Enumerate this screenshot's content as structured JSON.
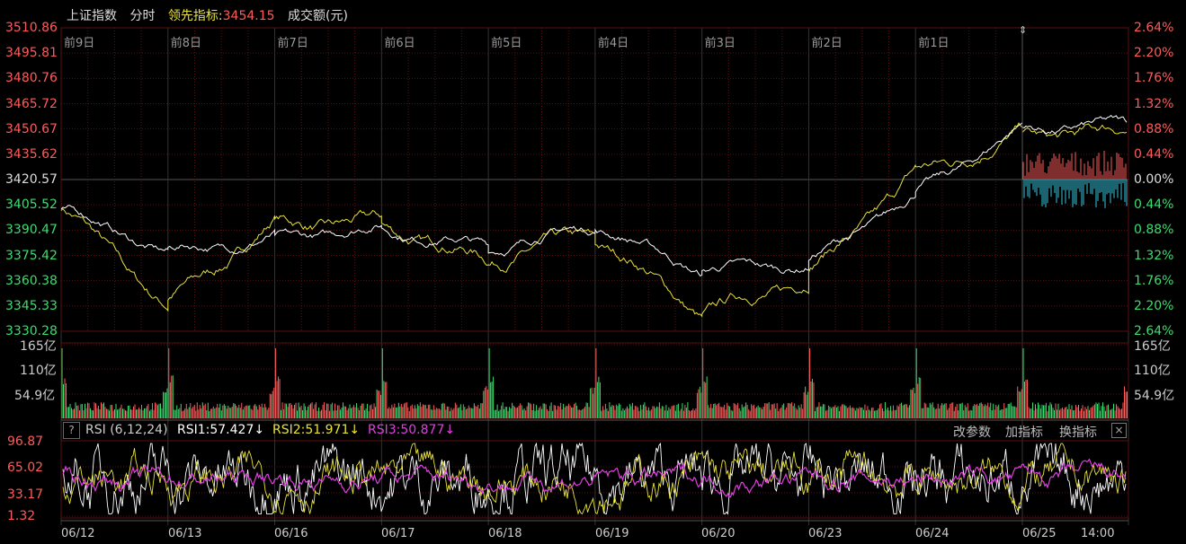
{
  "header": {
    "index_name": "上证指数",
    "mode": "分时",
    "leading_label": "领先指标:",
    "leading_value": "3454.15",
    "volume_label": "成交额(元)"
  },
  "price_axis": {
    "left_ticks": [
      "3510.86",
      "3495.81",
      "3480.76",
      "3465.72",
      "3450.67",
      "3435.62",
      "3420.57",
      "3405.52",
      "3390.47",
      "3375.42",
      "3360.38",
      "3345.33",
      "3330.28"
    ],
    "right_ticks": [
      "2.64%",
      "2.20%",
      "1.76%",
      "1.32%",
      "0.88%",
      "0.44%",
      "0.00%",
      "0.44%",
      "0.88%",
      "1.32%",
      "1.76%",
      "2.20%",
      "2.64%"
    ]
  },
  "day_labels": [
    "前9日",
    "前8日",
    "前7日",
    "前6日",
    "前5日",
    "前4日",
    "前3日",
    "前2日",
    "前1日"
  ],
  "volume_axis": {
    "ticks": [
      "165亿",
      "110亿",
      "54.9亿"
    ]
  },
  "rsi": {
    "help": "?",
    "title": "RSI (6,12,24)",
    "rsi1": "RSI1:57.427↓",
    "rsi2": "RSI2:51.971↓",
    "rsi3": "RSI3:50.877↓",
    "ticks": [
      "96.87",
      "65.02",
      "33.17",
      "1.32"
    ],
    "btn_params": "改参数",
    "btn_add": "加指标",
    "btn_switch": "换指标",
    "close": "×"
  },
  "dates": [
    "06/12",
    "06/13",
    "06/16",
    "06/17",
    "06/18",
    "06/19",
    "06/20",
    "06/23",
    "06/24",
    "06/25",
    "14:00"
  ],
  "colors": {
    "up": "#ff5a5a",
    "down": "#3ddc6e",
    "price_line": "#ffffff",
    "avg_line": "#e8e23a",
    "rsi3": "#e040e0",
    "today_minus": "#39c6e0",
    "grid": "#5a1010"
  },
  "chart_data": {
    "type": "line",
    "x": [
      "06/12",
      "06/13",
      "06/16",
      "06/17",
      "06/18",
      "06/19",
      "06/20",
      "06/23",
      "06/24",
      "06/25"
    ],
    "series": [
      {
        "values": [
          3402,
          3378,
          3386,
          3392,
          3380,
          3392,
          3366,
          3370,
          3412,
          3452
        ]
      },
      {
        "values": [
          3404,
          3346,
          3396,
          3394,
          3372,
          3386,
          3340,
          3362,
          3425,
          3448
        ]
      }
    ],
    "ylim": [
      3330.28,
      3510.86
    ]
  }
}
